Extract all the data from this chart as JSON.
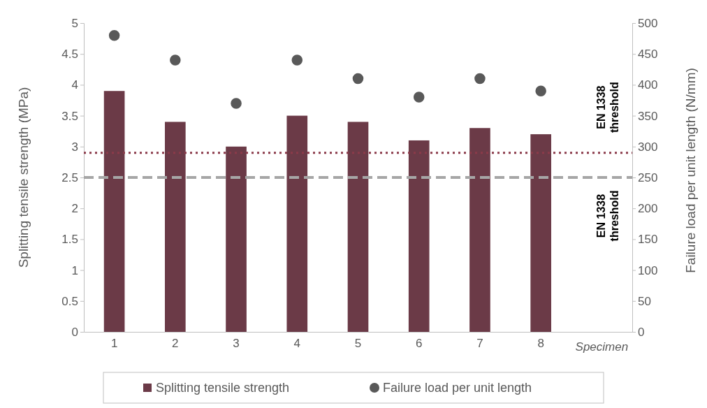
{
  "chart_data": {
    "type": "bar",
    "xlabel": "Specimen",
    "ylabel": "Splitting tensile strength (MPa)",
    "y2label": "Failure load per unit length (N/mm)",
    "categories": [
      "1",
      "2",
      "3",
      "4",
      "5",
      "6",
      "7",
      "8"
    ],
    "series": [
      {
        "name": "Splitting tensile strength",
        "color": "#6b3a47",
        "values": [
          3.9,
          3.4,
          3.0,
          3.5,
          3.4,
          3.1,
          3.3,
          3.2
        ]
      },
      {
        "name": "Failure load per unit length",
        "type": "scatter",
        "axis": "y2",
        "color": "#595959",
        "values": [
          480,
          440,
          370,
          440,
          410,
          380,
          410,
          390
        ]
      }
    ],
    "ylim": [
      0,
      5
    ],
    "yticks": [
      0,
      {
        "value": 0.5,
        "label": "0.5"
      },
      1,
      {
        "value": 1.5,
        "label": "1.5"
      },
      2,
      {
        "value": 2.5,
        "label": "2.5"
      },
      3,
      {
        "value": 3.5,
        "label": "3.5"
      },
      4,
      {
        "value": 4.5,
        "label": "4.5"
      },
      5
    ],
    "y2lim": [
      0,
      500
    ],
    "y2ticks": [
      0,
      50,
      100,
      150,
      200,
      250,
      300,
      350,
      400,
      450,
      500
    ],
    "ref_lines": [
      {
        "axis": "y",
        "value": 2.9,
        "label": "EN 1338 threshold",
        "color": "#8b3a4a",
        "line_style": "dotted"
      },
      {
        "axis": "y2",
        "value": 250,
        "label": "EN 1338 threshold",
        "color": "#a6a6a6",
        "line_style": "dashed"
      }
    ],
    "marker": "circle",
    "legend": "bottom",
    "grid": false
  }
}
